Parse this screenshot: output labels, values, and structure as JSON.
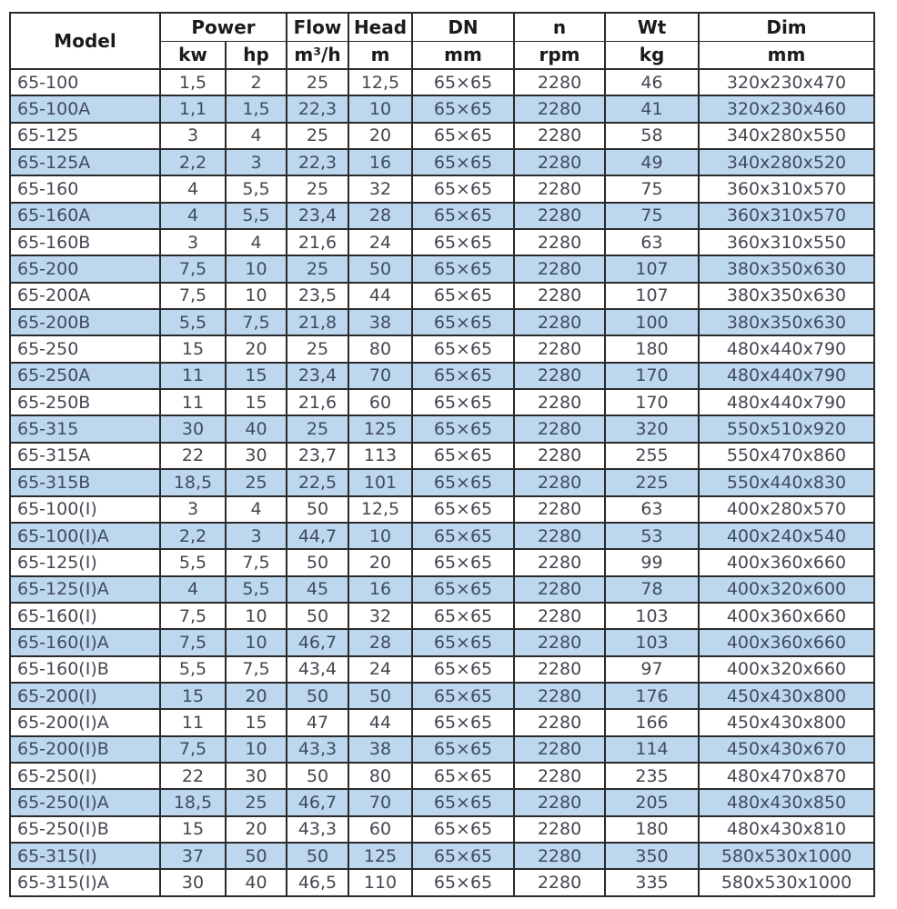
{
  "colors": {
    "stripe_blue": "#bdd7ee",
    "border_dark": "#2a2a2a",
    "header_text": "#1b1b1b",
    "data_text": "#43474f",
    "background": "#ffffff"
  },
  "table": {
    "header": {
      "model": "Model",
      "power": "Power",
      "power_kw": "kw",
      "power_hp": "hp",
      "flow": "Flow",
      "flow_unit": "m³/h",
      "head": "Head",
      "head_unit": "m",
      "dn": "DN",
      "dn_unit": "mm",
      "n": "n",
      "n_unit": "rpm",
      "wt": "Wt",
      "wt_unit": "kg",
      "dim": "Dim",
      "dim_unit": "mm"
    },
    "rows": [
      [
        "65-100",
        "1,5",
        "2",
        "25",
        "12,5",
        "65×65",
        "2280",
        "46",
        "320x230x470"
      ],
      [
        "65-100A",
        "1,1",
        "1,5",
        "22,3",
        "10",
        "65×65",
        "2280",
        "41",
        "320x230x460"
      ],
      [
        "65-125",
        "3",
        "4",
        "25",
        "20",
        "65×65",
        "2280",
        "58",
        "340x280x550"
      ],
      [
        "65-125A",
        "2,2",
        "3",
        "22,3",
        "16",
        "65×65",
        "2280",
        "49",
        "340x280x520"
      ],
      [
        "65-160",
        "4",
        "5,5",
        "25",
        "32",
        "65×65",
        "2280",
        "75",
        "360x310x570"
      ],
      [
        "65-160A",
        "4",
        "5,5",
        "23,4",
        "28",
        "65×65",
        "2280",
        "75",
        "360x310x570"
      ],
      [
        "65-160B",
        "3",
        "4",
        "21,6",
        "24",
        "65×65",
        "2280",
        "63",
        "360x310x550"
      ],
      [
        "65-200",
        "7,5",
        "10",
        "25",
        "50",
        "65×65",
        "2280",
        "107",
        "380x350x630"
      ],
      [
        "65-200A",
        "7,5",
        "10",
        "23,5",
        "44",
        "65×65",
        "2280",
        "107",
        "380x350x630"
      ],
      [
        "65-200B",
        "5,5",
        "7,5",
        "21,8",
        "38",
        "65×65",
        "2280",
        "100",
        "380x350x630"
      ],
      [
        "65-250",
        "15",
        "20",
        "25",
        "80",
        "65×65",
        "2280",
        "180",
        "480x440x790"
      ],
      [
        "65-250A",
        "11",
        "15",
        "23,4",
        "70",
        "65×65",
        "2280",
        "170",
        "480x440x790"
      ],
      [
        "65-250B",
        "11",
        "15",
        "21,6",
        "60",
        "65×65",
        "2280",
        "170",
        "480x440x790"
      ],
      [
        "65-315",
        "30",
        "40",
        "25",
        "125",
        "65×65",
        "2280",
        "320",
        "550x510x920"
      ],
      [
        "65-315A",
        "22",
        "30",
        "23,7",
        "113",
        "65×65",
        "2280",
        "255",
        "550x470x860"
      ],
      [
        "65-315B",
        "18,5",
        "25",
        "22,5",
        "101",
        "65×65",
        "2280",
        "225",
        "550x440x830"
      ],
      [
        "65-100(I)",
        "3",
        "4",
        "50",
        "12,5",
        "65×65",
        "2280",
        "63",
        "400x280x570"
      ],
      [
        "65-100(I)A",
        "2,2",
        "3",
        "44,7",
        "10",
        "65×65",
        "2280",
        "53",
        "400x240x540"
      ],
      [
        "65-125(I)",
        "5,5",
        "7,5",
        "50",
        "20",
        "65×65",
        "2280",
        "99",
        "400x360x660"
      ],
      [
        "65-125(I)A",
        "4",
        "5,5",
        "45",
        "16",
        "65×65",
        "2280",
        "78",
        "400x320x600"
      ],
      [
        "65-160(I)",
        "7,5",
        "10",
        "50",
        "32",
        "65×65",
        "2280",
        "103",
        "400x360x660"
      ],
      [
        "65-160(I)A",
        "7,5",
        "10",
        "46,7",
        "28",
        "65×65",
        "2280",
        "103",
        "400x360x660"
      ],
      [
        "65-160(I)B",
        "5,5",
        "7,5",
        "43,4",
        "24",
        "65×65",
        "2280",
        "97",
        "400x320x660"
      ],
      [
        "65-200(I)",
        "15",
        "20",
        "50",
        "50",
        "65×65",
        "2280",
        "176",
        "450x430x800"
      ],
      [
        "65-200(I)A",
        "11",
        "15",
        "47",
        "44",
        "65×65",
        "2280",
        "166",
        "450x430x800"
      ],
      [
        "65-200(I)B",
        "7,5",
        "10",
        "43,3",
        "38",
        "65×65",
        "2280",
        "114",
        "450x430x670"
      ],
      [
        "65-250(I)",
        "22",
        "30",
        "50",
        "80",
        "65×65",
        "2280",
        "235",
        "480x470x870"
      ],
      [
        "65-250(I)A",
        "18,5",
        "25",
        "46,7",
        "70",
        "65×65",
        "2280",
        "205",
        "480x430x850"
      ],
      [
        "65-250(I)B",
        "15",
        "20",
        "43,3",
        "60",
        "65×65",
        "2280",
        "180",
        "480x430x810"
      ],
      [
        "65-315(I)",
        "37",
        "50",
        "50",
        "125",
        "65×65",
        "2280",
        "350",
        "580x530x1000"
      ],
      [
        "65-315(I)A",
        "30",
        "40",
        "46,5",
        "110",
        "65×65",
        "2280",
        "335",
        "580x530x1000"
      ]
    ]
  }
}
